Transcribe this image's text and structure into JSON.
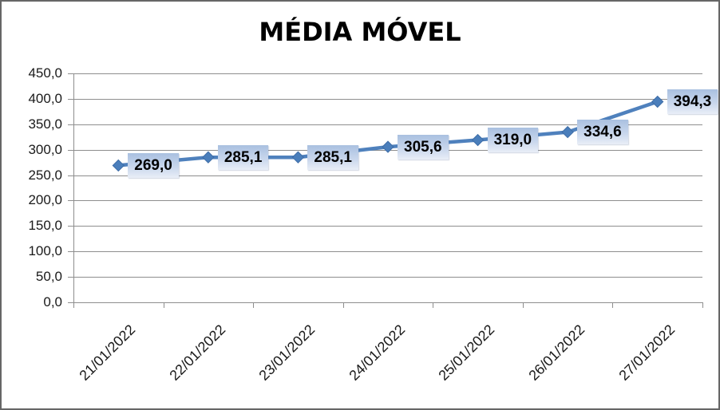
{
  "window": {
    "background": "#ffffff",
    "border_color": "#666666"
  },
  "chart_data": {
    "type": "line",
    "title": "MÉDIA MÓVEL",
    "categories": [
      "21/01/2022",
      "22/01/2022",
      "23/01/2022",
      "24/01/2022",
      "25/01/2022",
      "26/01/2022",
      "27/01/2022"
    ],
    "values": [
      269.0,
      285.1,
      285.1,
      305.6,
      319.0,
      334.6,
      394.3
    ],
    "data_labels": [
      "269,0",
      "285,1",
      "285,1",
      "305,6",
      "319,0",
      "334,6",
      "394,3"
    ],
    "y_tick_labels": [
      "450,0",
      "400,0",
      "350,0",
      "300,0",
      "250,0",
      "200,0",
      "150,0",
      "100,0",
      "50,0",
      "0,0"
    ],
    "ylim": [
      0,
      450
    ],
    "y_step": 50,
    "xlabel": "",
    "ylabel": "",
    "grid": true,
    "legend": "none",
    "colors": {
      "line": "#4f81bd",
      "marker": "#4a7ebb",
      "marker_edge": "#3d6ca6",
      "gridline": "#8e8e8e",
      "axis": "#8e8e8e",
      "text": "#1a1a1a",
      "label_bg_top": "#a9c0e0",
      "label_bg_mid": "#c8d6ec",
      "label_bg_bottom": "#e9eef7"
    }
  }
}
